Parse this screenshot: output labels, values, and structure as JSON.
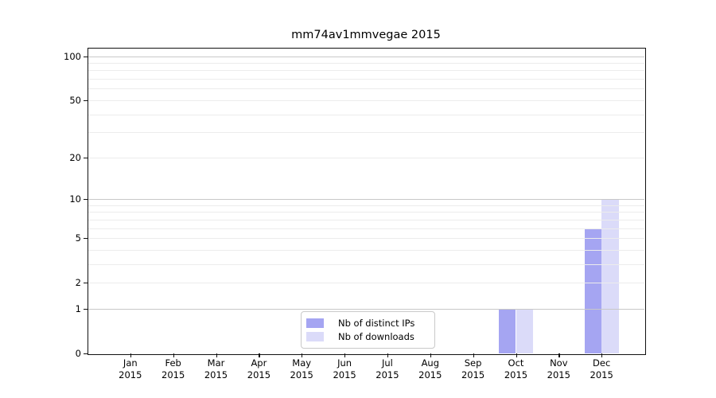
{
  "chart_data": {
    "type": "bar",
    "title": "mm74av1mmvegae 2015",
    "year_label": "2015",
    "categories": [
      "Jan",
      "Feb",
      "Mar",
      "Apr",
      "May",
      "Jun",
      "Jul",
      "Aug",
      "Sep",
      "Oct",
      "Nov",
      "Dec"
    ],
    "series": [
      {
        "name": "Nb of distinct IPs",
        "color": "#a5a5f2",
        "values": [
          0,
          0,
          0,
          0,
          0,
          0,
          0,
          0,
          0,
          1,
          0,
          6
        ]
      },
      {
        "name": "Nb of downloads",
        "color": "#dbdbf9",
        "values": [
          0,
          0,
          0,
          0,
          0,
          0,
          0,
          0,
          0,
          1,
          0,
          10
        ]
      }
    ],
    "xlabel": "",
    "ylabel": "",
    "y_axis": {
      "scale": "log1p",
      "ylim": [
        0,
        114
      ],
      "tick_values": [
        0,
        1,
        2,
        5,
        10,
        20,
        50,
        100
      ],
      "major_grid_values": [
        1,
        10,
        100
      ],
      "minor_grid_values": [
        2,
        3,
        4,
        5,
        6,
        7,
        8,
        9,
        20,
        30,
        40,
        50,
        60,
        70,
        80,
        90
      ]
    },
    "grid": "both",
    "legend": {
      "position": "lower center",
      "entries": [
        "Nb of distinct IPs",
        "Nb of downloads"
      ]
    },
    "colors": {
      "major_grid": "#c8c8c8",
      "minor_grid": "#ececec",
      "spine": "#111111",
      "text": "#000000",
      "background": "#ffffff"
    }
  }
}
